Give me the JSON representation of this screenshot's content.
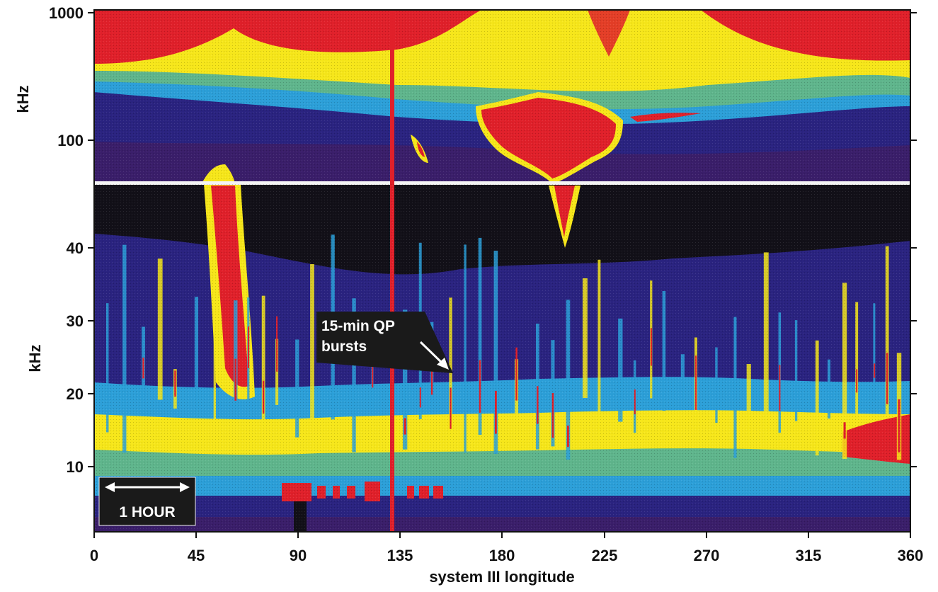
{
  "chart_data": {
    "type": "heatmap",
    "title": "",
    "xlabel": "system III longitude",
    "ylabel_top": "kHz",
    "ylabel_bottom": "kHz",
    "x_ticks": [
      "0",
      "45",
      "90",
      "135",
      "180",
      "225",
      "270",
      "315",
      "360"
    ],
    "xlim": [
      0,
      360
    ],
    "top_panel": {
      "scale": "log",
      "ylim_khz": [
        60,
        1000
      ],
      "y_ticks": [
        "1000",
        "100"
      ]
    },
    "bottom_panel": {
      "scale": "linear",
      "ylim_khz": [
        3,
        53
      ],
      "y_ticks": [
        "40",
        "30",
        "20",
        "10"
      ]
    },
    "colors": {
      "red": "#e0202a",
      "yellow": "#f6e61a",
      "green": "#5fb58c",
      "blue": "#2c9fd8",
      "navy": "#2a2580",
      "purple": "#3a1e6a",
      "black": "#121018"
    },
    "annotations": [
      {
        "text_lines": [
          "15-min QP",
          "bursts"
        ],
        "arrow_to_longitude": 162,
        "arrow_to_khz": 24
      },
      {
        "text": "1 HOUR",
        "arrow": "double-headed"
      }
    ],
    "features": [
      {
        "name": "red vertical line",
        "longitude": 132
      },
      {
        "name": "panel divider",
        "khz": 53
      }
    ]
  }
}
